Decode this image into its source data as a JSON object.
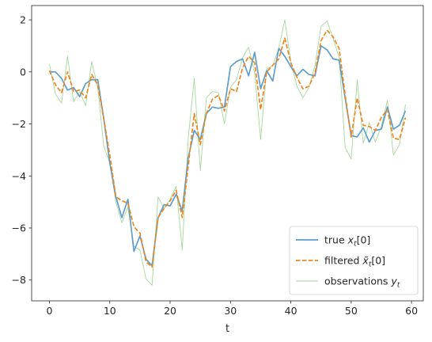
{
  "chart_data": {
    "type": "line",
    "title": "",
    "xlabel": "t",
    "ylabel": "",
    "xlim": [
      -2.95,
      61.95
    ],
    "ylim": [
      -8.8,
      2.55
    ],
    "xticks": [
      0,
      10,
      20,
      30,
      40,
      50,
      60
    ],
    "yticks": [
      2,
      0,
      -2,
      -4,
      -6,
      -8
    ],
    "ytick_labels": [
      "2",
      "0",
      "−2",
      "−4",
      "−6",
      "−8"
    ],
    "grid": false,
    "legend": {
      "placement": "lower-right",
      "entries": [
        {
          "main": "true ",
          "math": "x",
          "sub": "t",
          "suffix": "[0]"
        },
        {
          "main": "filtered ",
          "math": "x̃",
          "sub": "t",
          "suffix": "[0]"
        },
        {
          "main": "observations ",
          "math": "y",
          "sub": "t",
          "suffix": ""
        }
      ]
    },
    "series": [
      {
        "id": "true",
        "color": "#5e9ec9",
        "style": "solid",
        "values": [
          0.0,
          0.0,
          -0.25,
          -0.7,
          -0.6,
          -0.95,
          -0.45,
          -0.3,
          -0.3,
          -1.8,
          -3.5,
          -4.8,
          -5.6,
          -4.9,
          -6.9,
          -6.3,
          -7.2,
          -7.45,
          -5.6,
          -5.1,
          -5.15,
          -4.7,
          -5.35,
          -3.3,
          -2.25,
          -2.6,
          -1.6,
          -1.35,
          -1.4,
          -1.35,
          0.2,
          0.4,
          0.5,
          -0.15,
          0.75,
          -0.65,
          0.05,
          -0.35,
          0.9,
          0.6,
          0.2,
          -0.15,
          0.1,
          -0.1,
          -0.15,
          1.0,
          0.85,
          0.5,
          0.45,
          -1.0,
          -2.45,
          -2.5,
          -2.15,
          -2.7,
          -2.25,
          -2.2,
          -1.35,
          -2.2,
          -2.05,
          -1.5
        ]
      },
      {
        "id": "filtered",
        "color": "#f0851c",
        "style": "dashed",
        "values": [
          0.05,
          -0.5,
          -0.8,
          0.0,
          -0.75,
          -0.7,
          -1.0,
          -0.1,
          -0.5,
          -1.8,
          -3.2,
          -4.8,
          -4.95,
          -5.05,
          -5.95,
          -6.2,
          -7.3,
          -7.5,
          -5.6,
          -5.25,
          -4.95,
          -4.55,
          -5.6,
          -3.6,
          -1.6,
          -2.8,
          -1.6,
          -1.05,
          -0.9,
          -1.5,
          -0.65,
          -0.75,
          0.15,
          0.6,
          0.35,
          -1.45,
          0.0,
          0.25,
          0.5,
          1.3,
          0.35,
          -0.2,
          -0.65,
          -0.55,
          -0.05,
          1.2,
          1.6,
          1.35,
          0.9,
          -0.9,
          -2.5,
          -1.0,
          -2.05,
          -2.1,
          -2.25,
          -1.75,
          -1.45,
          -2.55,
          -2.6,
          -1.75
        ]
      },
      {
        "id": "observations",
        "color": "#a6d79c",
        "style": "solid",
        "values": [
          0.3,
          -0.85,
          -1.2,
          0.6,
          -1.15,
          -0.75,
          -1.3,
          0.4,
          -0.6,
          -2.85,
          -3.5,
          -5.0,
          -5.8,
          -5.2,
          -6.7,
          -6.85,
          -7.95,
          -8.2,
          -4.8,
          -5.25,
          -4.9,
          -4.4,
          -6.85,
          -2.55,
          -0.25,
          -3.8,
          -1.0,
          -0.75,
          -0.8,
          -2.0,
          -0.6,
          -0.3,
          0.55,
          0.95,
          -0.05,
          -2.6,
          0.1,
          0.25,
          0.9,
          2.0,
          0.4,
          -0.55,
          -1.0,
          -0.6,
          0.25,
          1.75,
          1.95,
          1.3,
          0.55,
          -2.9,
          -3.35,
          -0.3,
          -2.75,
          -1.95,
          -2.7,
          -2.1,
          -1.1,
          -3.2,
          -2.8,
          -1.25
        ]
      }
    ]
  }
}
